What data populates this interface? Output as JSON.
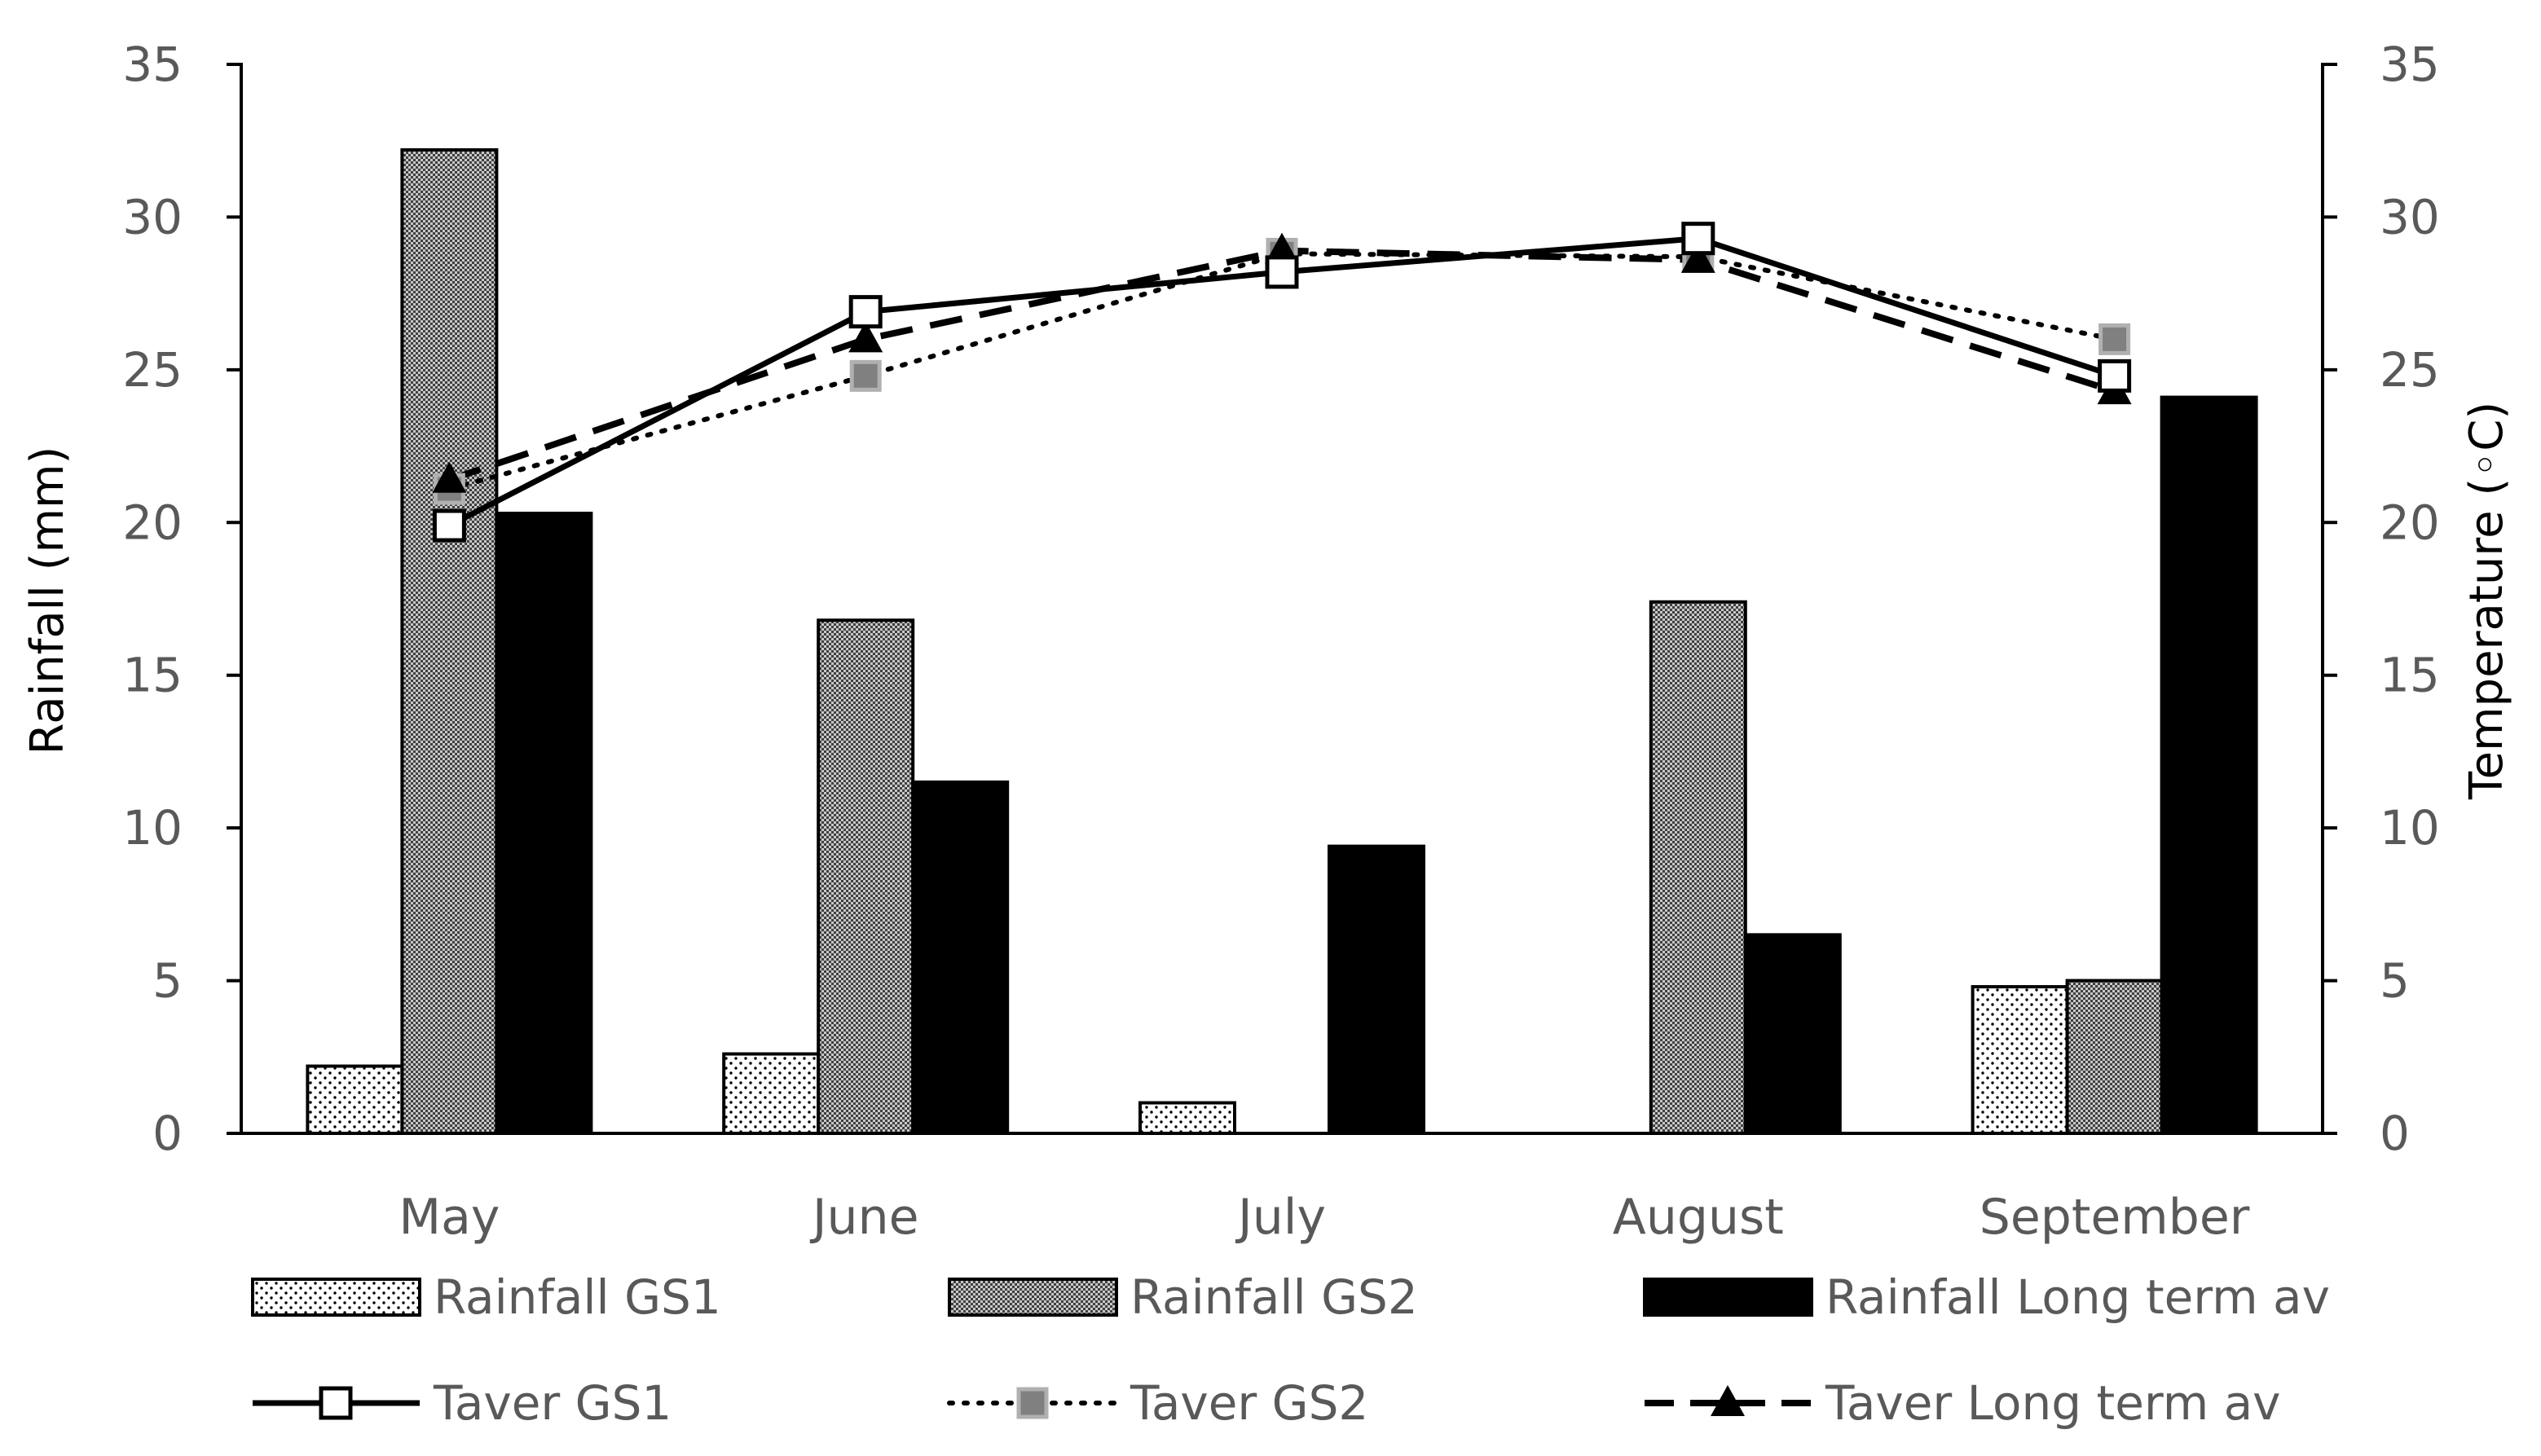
{
  "chart_data": {
    "type": "bar",
    "categories": [
      "May",
      "June",
      "July",
      "August",
      "September"
    ],
    "ylabel": "Rainfall (mm)",
    "y2label": "Temperature (◦C)",
    "ylim": [
      0,
      35
    ],
    "y2lim": [
      0,
      35
    ],
    "yticks": [
      "0",
      "5",
      "10",
      "15",
      "20",
      "25",
      "30",
      "35"
    ],
    "y2ticks": [
      "0",
      "5",
      "10",
      "15",
      "20",
      "25",
      "30",
      "35"
    ],
    "bar_series": [
      {
        "name": "Rainfall GS1",
        "values": [
          2.2,
          2.6,
          1.0,
          0,
          4.8
        ]
      },
      {
        "name": "Rainfall GS2",
        "values": [
          32.2,
          16.8,
          0,
          17.4,
          5.0
        ]
      },
      {
        "name": "Rainfall Long term av",
        "values": [
          20.3,
          11.5,
          9.4,
          6.5,
          24.1
        ]
      }
    ],
    "line_series": [
      {
        "name": "Taver GS1",
        "values": [
          19.9,
          26.9,
          28.2,
          29.3,
          24.8
        ]
      },
      {
        "name": "Taver GS2",
        "values": [
          21.1,
          24.8,
          28.8,
          28.7,
          26.0
        ]
      },
      {
        "name": "Taver Long term av",
        "values": [
          21.4,
          26.0,
          28.9,
          28.6,
          24.3
        ]
      }
    ],
    "legend_position": "bottom",
    "colors": {
      "axis": "#000000",
      "text": "#595959",
      "bar_gs1_fill": "#ffffff",
      "bar_gs1_dots": "#000000",
      "bar_gs2_dark": "#404040",
      "bar_gs2_light": "#c8c8c8",
      "bar_lt": "#000000",
      "line": "#000000",
      "marker_gs2": "#808080",
      "marker_gs2_edge": "#b0b0b0"
    }
  }
}
